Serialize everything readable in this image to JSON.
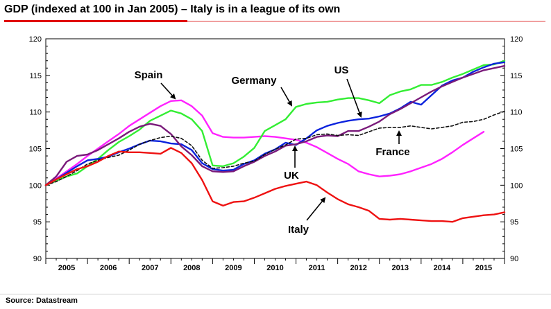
{
  "title": "GDP (indexed at 100 in Jan 2005) – Italy is in a league of its own",
  "source": "Source: Datastream",
  "chart_data": {
    "type": "line",
    "title": "GDP (indexed at 100 in Jan 2005) – Italy is in a league of its own",
    "xlabel": "",
    "ylabel": "",
    "xlim": [
      2005.0,
      2016.0
    ],
    "ylim": [
      90,
      120
    ],
    "yticks": [
      90,
      95,
      100,
      105,
      110,
      115,
      120
    ],
    "ytick_labels": [
      "90",
      "95",
      "100",
      "105",
      "110",
      "115",
      "120"
    ],
    "xtick_labels": [
      "2005",
      "2006",
      "2007",
      "2008",
      "2009",
      "2010",
      "2011",
      "2012",
      "2013",
      "2014",
      "2015"
    ],
    "grid": false,
    "legend": "none",
    "series": [
      {
        "name": "Spain",
        "color": "#ff22ff",
        "dash": false,
        "x": [
          2005.0,
          2005.25,
          2005.5,
          2005.75,
          2006.0,
          2006.25,
          2006.5,
          2006.75,
          2007.0,
          2007.25,
          2007.5,
          2007.75,
          2008.0,
          2008.25,
          2008.5,
          2008.75,
          2009.0,
          2009.25,
          2009.5,
          2009.75,
          2010.0,
          2010.25,
          2010.5,
          2010.75,
          2011.0,
          2011.25,
          2011.5,
          2011.75,
          2012.0,
          2012.25,
          2012.5,
          2012.75,
          2013.0,
          2013.25,
          2013.5,
          2013.75,
          2014.0,
          2014.25,
          2014.5,
          2014.75,
          2015.0,
          2015.25,
          2015.5
        ],
        "y": [
          100.0,
          100.9,
          101.9,
          102.9,
          104.0,
          105.0,
          106.0,
          107.0,
          108.1,
          109.0,
          109.9,
          110.8,
          111.5,
          111.6,
          110.8,
          109.5,
          107.1,
          106.6,
          106.5,
          106.5,
          106.6,
          106.7,
          106.6,
          106.4,
          106.2,
          105.8,
          105.2,
          104.4,
          103.6,
          102.9,
          101.9,
          101.5,
          101.2,
          101.3,
          101.5,
          101.9,
          102.4,
          102.9,
          103.6,
          104.5,
          105.5,
          106.4,
          107.3
        ]
      },
      {
        "name": "Germany",
        "color": "#33ee33",
        "dash": false,
        "x": [
          2005.0,
          2005.25,
          2005.5,
          2005.75,
          2006.0,
          2006.25,
          2006.5,
          2006.75,
          2007.0,
          2007.25,
          2007.5,
          2007.75,
          2008.0,
          2008.25,
          2008.5,
          2008.75,
          2009.0,
          2009.25,
          2009.5,
          2009.75,
          2010.0,
          2010.25,
          2010.5,
          2010.75,
          2011.0,
          2011.25,
          2011.5,
          2011.75,
          2012.0,
          2012.25,
          2012.5,
          2012.75,
          2013.0,
          2013.25,
          2013.5,
          2013.75,
          2014.0,
          2014.25,
          2014.5,
          2014.75,
          2015.0,
          2015.25,
          2015.5,
          2015.75,
          2016.0
        ],
        "y": [
          100.0,
          100.6,
          101.2,
          101.6,
          102.6,
          103.6,
          104.8,
          105.9,
          106.7,
          107.6,
          108.8,
          109.5,
          110.2,
          109.8,
          109.0,
          107.4,
          102.7,
          102.6,
          103.0,
          103.9,
          105.1,
          107.4,
          108.2,
          109.0,
          110.7,
          111.1,
          111.3,
          111.4,
          111.7,
          111.9,
          111.9,
          111.6,
          111.2,
          112.3,
          112.8,
          113.1,
          113.7,
          113.7,
          114.1,
          114.7,
          115.2,
          115.8,
          116.4,
          116.5,
          117.0
        ]
      },
      {
        "name": "US",
        "color": "#0a22dd",
        "dash": false,
        "x": [
          2005.0,
          2005.25,
          2005.5,
          2005.75,
          2006.0,
          2006.25,
          2006.5,
          2006.75,
          2007.0,
          2007.25,
          2007.5,
          2007.75,
          2008.0,
          2008.25,
          2008.5,
          2008.75,
          2009.0,
          2009.25,
          2009.5,
          2009.75,
          2010.0,
          2010.25,
          2010.5,
          2010.75,
          2011.0,
          2011.25,
          2011.5,
          2011.75,
          2012.0,
          2012.25,
          2012.5,
          2012.75,
          2013.0,
          2013.25,
          2013.5,
          2013.75,
          2014.0,
          2014.25,
          2014.5,
          2014.75,
          2015.0,
          2015.25,
          2015.5,
          2015.75,
          2016.0
        ],
        "y": [
          100.0,
          100.8,
          101.7,
          102.6,
          103.4,
          103.6,
          103.9,
          104.5,
          105.0,
          105.6,
          106.1,
          106.0,
          105.7,
          105.6,
          104.8,
          103.0,
          102.2,
          102.0,
          102.1,
          102.9,
          103.4,
          104.3,
          104.9,
          105.8,
          105.5,
          106.4,
          107.5,
          108.1,
          108.5,
          108.8,
          109.0,
          109.1,
          109.4,
          109.8,
          110.5,
          111.4,
          111.0,
          112.3,
          113.6,
          114.3,
          114.7,
          115.5,
          116.1,
          116.6,
          116.8
        ]
      },
      {
        "name": "UK",
        "color": "#7a1a7a",
        "dash": false,
        "x": [
          2005.0,
          2005.25,
          2005.5,
          2005.75,
          2006.0,
          2006.25,
          2006.5,
          2006.75,
          2007.0,
          2007.25,
          2007.5,
          2007.75,
          2008.0,
          2008.25,
          2008.5,
          2008.75,
          2009.0,
          2009.25,
          2009.5,
          2009.75,
          2010.0,
          2010.25,
          2010.5,
          2010.75,
          2011.0,
          2011.25,
          2011.5,
          2011.75,
          2012.0,
          2012.25,
          2012.5,
          2012.75,
          2013.0,
          2013.25,
          2013.5,
          2013.75,
          2014.0,
          2014.25,
          2014.5,
          2014.75,
          2015.0,
          2015.25,
          2015.5,
          2015.75,
          2016.0
        ],
        "y": [
          100.0,
          101.2,
          103.2,
          104.0,
          104.2,
          104.8,
          105.6,
          106.4,
          107.3,
          108.0,
          108.4,
          108.1,
          107.0,
          105.3,
          104.1,
          102.6,
          101.9,
          101.8,
          101.9,
          102.6,
          103.2,
          104.0,
          104.6,
          105.4,
          105.6,
          106.0,
          106.6,
          106.8,
          106.7,
          107.4,
          107.4,
          108.0,
          108.7,
          109.7,
          110.4,
          111.2,
          112.0,
          112.8,
          113.5,
          114.1,
          114.7,
          115.2,
          115.7,
          116.0,
          116.3
        ]
      },
      {
        "name": "France",
        "color": "#111111",
        "dash": true,
        "x": [
          2005.0,
          2005.25,
          2005.5,
          2005.75,
          2006.0,
          2006.25,
          2006.5,
          2006.75,
          2007.0,
          2007.25,
          2007.5,
          2007.75,
          2008.0,
          2008.25,
          2008.5,
          2008.75,
          2009.0,
          2009.25,
          2009.5,
          2009.75,
          2010.0,
          2010.25,
          2010.5,
          2010.75,
          2011.0,
          2011.25,
          2011.5,
          2011.75,
          2012.0,
          2012.25,
          2012.5,
          2012.75,
          2013.0,
          2013.25,
          2013.5,
          2013.75,
          2014.0,
          2014.25,
          2014.5,
          2014.75,
          2015.0,
          2015.25,
          2015.5,
          2015.75,
          2016.0
        ],
        "y": [
          100.0,
          100.5,
          101.2,
          102.0,
          102.9,
          103.4,
          103.8,
          104.1,
          104.8,
          105.6,
          106.1,
          106.5,
          106.7,
          106.4,
          105.4,
          103.4,
          102.3,
          102.4,
          102.6,
          103.0,
          103.3,
          104.2,
          104.9,
          105.5,
          106.3,
          106.4,
          106.9,
          107.0,
          106.8,
          106.9,
          106.8,
          107.3,
          107.8,
          107.9,
          107.9,
          108.1,
          107.9,
          107.7,
          107.9,
          108.1,
          108.6,
          108.7,
          109.0,
          109.6,
          110.1
        ]
      },
      {
        "name": "Italy",
        "color": "#ee1111",
        "dash": false,
        "x": [
          2005.0,
          2005.25,
          2005.5,
          2005.75,
          2006.0,
          2006.25,
          2006.5,
          2006.75,
          2007.0,
          2007.25,
          2007.5,
          2007.75,
          2008.0,
          2008.25,
          2008.5,
          2008.75,
          2009.0,
          2009.25,
          2009.5,
          2009.75,
          2010.0,
          2010.25,
          2010.5,
          2010.75,
          2011.0,
          2011.25,
          2011.5,
          2011.75,
          2012.0,
          2012.25,
          2012.5,
          2012.75,
          2013.0,
          2013.25,
          2013.5,
          2013.75,
          2014.0,
          2014.25,
          2014.5,
          2014.75,
          2015.0,
          2015.25,
          2015.5,
          2015.75,
          2016.0
        ],
        "y": [
          100.0,
          100.8,
          101.5,
          102.2,
          102.6,
          103.2,
          104.0,
          104.6,
          104.5,
          104.5,
          104.4,
          104.3,
          105.1,
          104.4,
          103.0,
          100.7,
          97.8,
          97.2,
          97.7,
          97.8,
          98.3,
          98.9,
          99.5,
          99.9,
          100.2,
          100.5,
          100.0,
          99.0,
          98.1,
          97.4,
          97.0,
          96.5,
          95.4,
          95.3,
          95.4,
          95.3,
          95.2,
          95.1,
          95.1,
          95.0,
          95.5,
          95.7,
          95.9,
          96.0,
          96.3
        ]
      }
    ],
    "annotations": [
      {
        "text": "Spain",
        "color": "#000000"
      },
      {
        "text": "Germany",
        "color": "#000000"
      },
      {
        "text": "US",
        "color": "#000000"
      },
      {
        "text": "France",
        "color": "#000000"
      },
      {
        "text": "UK",
        "color": "#000000"
      },
      {
        "text": "Italy",
        "color": "#000000"
      }
    ]
  }
}
